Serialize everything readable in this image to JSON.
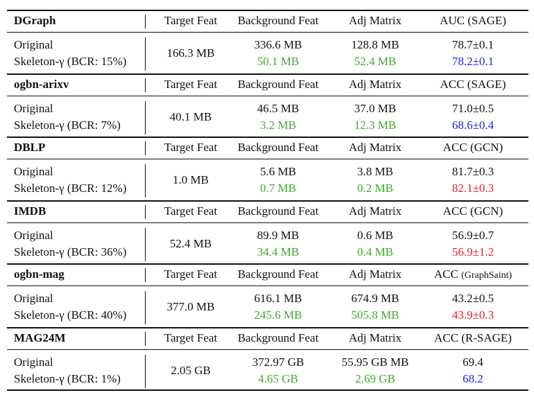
{
  "columns": {
    "target": "Target Feat",
    "background": "Background Feat",
    "adj": "Adj Matrix"
  },
  "row_labels": {
    "original": "Original",
    "skeleton_prefix": "Skeleton-"
  },
  "colors": {
    "reduced": "#3cab2a",
    "lower": "#2424e0",
    "higher": "#e0202a"
  },
  "blocks": [
    {
      "dataset": "DGraph",
      "metric": "AUC (SAGE)",
      "skeleton_label": "Skeleton-γ (BCR: 15%)",
      "target_feat": "166.3 MB",
      "bg_orig": "336.6 MB",
      "bg_skel": "50.1 MB",
      "adj_orig": "128.8 MB",
      "adj_skel": "52.4 MB",
      "metric_orig": "78.7±0.1",
      "metric_skel": "78.2±0.1",
      "metric_skel_color": "blue"
    },
    {
      "dataset": "ogbn-arixv",
      "metric": "ACC (SAGE)",
      "skeleton_label": "Skeleton-γ (BCR: 7%)",
      "target_feat": "40.1 MB",
      "bg_orig": "46.5 MB",
      "bg_skel": "3.2 MB",
      "adj_orig": "37.0 MB",
      "adj_skel": "12.3 MB",
      "metric_orig": "71.0±0.5",
      "metric_skel": "68.6±0.4",
      "metric_skel_color": "blue"
    },
    {
      "dataset": "DBLP",
      "metric": "ACC (GCN)",
      "skeleton_label": "Skeleton-γ (BCR: 12%)",
      "target_feat": "1.0 MB",
      "bg_orig": "5.6 MB",
      "bg_skel": "0.7 MB",
      "adj_orig": "3.8 MB",
      "adj_skel": "0.2 MB",
      "metric_orig": "81.7±0.3",
      "metric_skel": "82.1±0.3",
      "metric_skel_color": "red"
    },
    {
      "dataset": "IMDB",
      "metric": "ACC (GCN)",
      "skeleton_label": "Skeleton-γ (BCR: 36%)",
      "target_feat": "52.4 MB",
      "bg_orig": "89.9 MB",
      "bg_skel": "34.4 MB",
      "adj_orig": "0.6 MB",
      "adj_skel": "0.4 MB",
      "metric_orig": "56.9±0.7",
      "metric_skel": "56.9±1.2",
      "metric_skel_color": "red"
    },
    {
      "dataset": "ogbn-mag",
      "metric": "ACC",
      "metric_suffix": "(GraphSaint)",
      "skeleton_label": "Skeleton-γ (BCR: 40%)",
      "target_feat": "377.0 MB",
      "bg_orig": "616.1 MB",
      "bg_skel": "245.6 MB",
      "adj_orig": "674.9 MB",
      "adj_skel": "505.8 MB",
      "metric_orig": "43.2±0.5",
      "metric_skel": "43.9±0.3",
      "metric_skel_color": "red"
    },
    {
      "dataset": "MAG24M",
      "metric": "ACC (R-SAGE)",
      "skeleton_label": "Skeleton-γ (BCR: 1%)",
      "target_feat": "2.05 GB",
      "bg_orig": "372.97 GB",
      "bg_skel": "4.65 GB",
      "adj_orig": "55.95 GB MB",
      "adj_skel": "2.69 GB",
      "metric_orig": "69.4",
      "metric_skel": "68.2",
      "metric_skel_color": "blue"
    }
  ]
}
